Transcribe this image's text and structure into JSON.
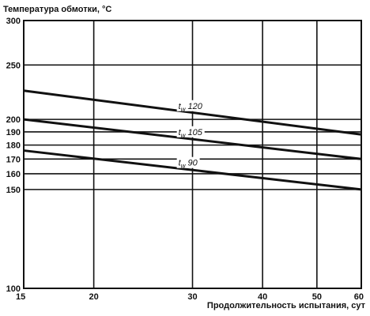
{
  "chart_data": {
    "type": "line",
    "title": "",
    "ylabel": "Температура обмотки, °С",
    "xlabel": "Продолжительность испытания, сут",
    "x_scale": "log",
    "y_scale": "log",
    "xlim": [
      15,
      60
    ],
    "ylim": [
      100,
      300
    ],
    "grid": true,
    "x_ticks": [
      15,
      20,
      30,
      40,
      50,
      60
    ],
    "y_ticks": [
      100,
      150,
      160,
      170,
      180,
      190,
      200,
      250,
      300
    ],
    "series": [
      {
        "name": "tw 120",
        "label_main": "t",
        "label_sub": "w",
        "label_num": "120",
        "x": [
          15,
          60
        ],
        "y": [
          225,
          188
        ]
      },
      {
        "name": "tw 105",
        "label_main": "t",
        "label_sub": "w",
        "label_num": "105",
        "x": [
          15,
          60
        ],
        "y": [
          200,
          170
        ]
      },
      {
        "name": "tw 90",
        "label_main": "t",
        "label_sub": "w",
        "label_num": "90",
        "x": [
          15,
          60
        ],
        "y": [
          176,
          150
        ]
      }
    ]
  }
}
